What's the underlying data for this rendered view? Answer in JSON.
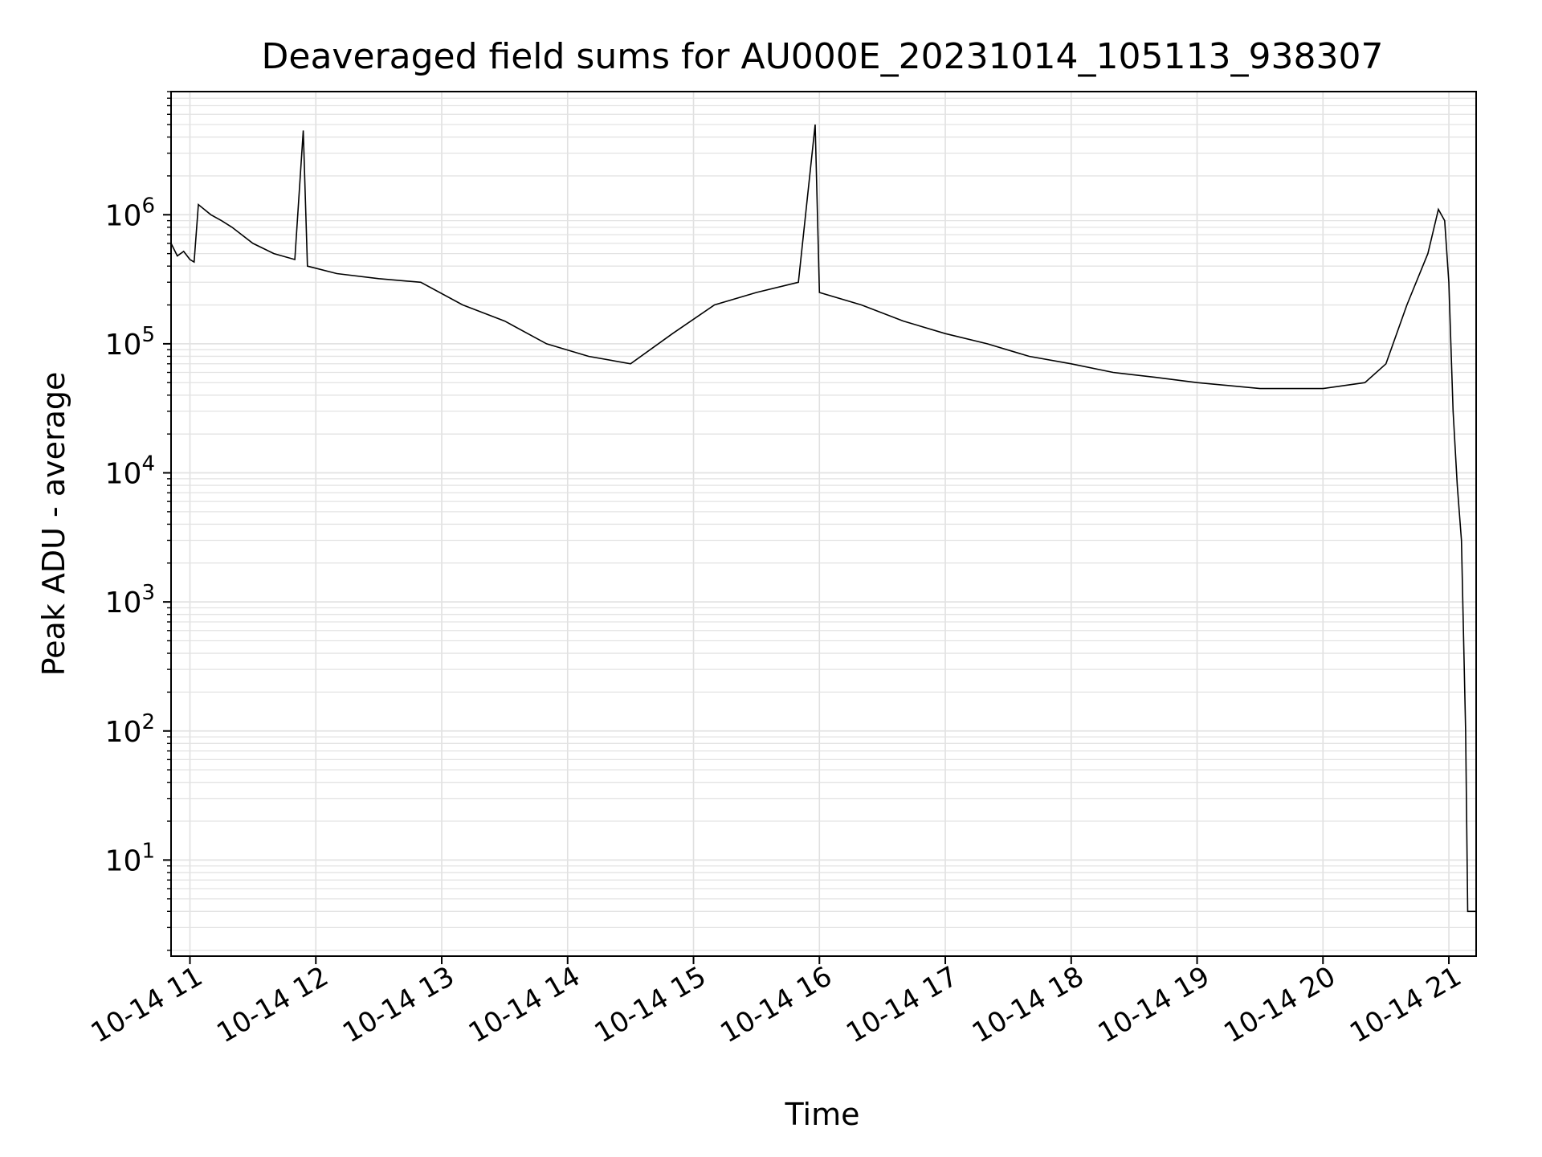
{
  "chart_data": {
    "type": "line",
    "title": "Deaveraged field sums for AU000E_20231014_105113_938307",
    "xlabel": "Time",
    "ylabel": "Peak ADU - average",
    "yscale": "log",
    "ylim": [
      1.8,
      9000000
    ],
    "xlim": [
      "2023-10-14T10:51:00",
      "2023-10-14T21:13:00"
    ],
    "grid": true,
    "x_tick_labels": [
      "10-14 11",
      "10-14 12",
      "10-14 13",
      "10-14 14",
      "10-14 15",
      "10-14 16",
      "10-14 17",
      "10-14 18",
      "10-14 19",
      "10-14 20",
      "10-14 21"
    ],
    "y_tick_exponents": [
      "1",
      "2",
      "3",
      "4",
      "5",
      "6"
    ],
    "y_tick_base": "10",
    "series": [
      {
        "color": "#000000",
        "points": [
          [
            "2023-10-14T10:51:00",
            600000
          ],
          [
            "2023-10-14T10:54:00",
            480000
          ],
          [
            "2023-10-14T10:57:00",
            520000
          ],
          [
            "2023-10-14T11:00:00",
            450000
          ],
          [
            "2023-10-14T11:02:00",
            430000
          ],
          [
            "2023-10-14T11:04:00",
            1200000
          ],
          [
            "2023-10-14T11:10:00",
            1000000
          ],
          [
            "2023-10-14T11:15:00",
            900000
          ],
          [
            "2023-10-14T11:20:00",
            800000
          ],
          [
            "2023-10-14T11:30:00",
            600000
          ],
          [
            "2023-10-14T11:40:00",
            500000
          ],
          [
            "2023-10-14T11:50:00",
            450000
          ],
          [
            "2023-10-14T11:54:00",
            4500000
          ],
          [
            "2023-10-14T11:56:00",
            400000
          ],
          [
            "2023-10-14T12:10:00",
            350000
          ],
          [
            "2023-10-14T12:30:00",
            320000
          ],
          [
            "2023-10-14T12:50:00",
            300000
          ],
          [
            "2023-10-14T13:10:00",
            200000
          ],
          [
            "2023-10-14T13:30:00",
            150000
          ],
          [
            "2023-10-14T13:50:00",
            100000
          ],
          [
            "2023-10-14T14:10:00",
            80000
          ],
          [
            "2023-10-14T14:30:00",
            70000
          ],
          [
            "2023-10-14T14:50:00",
            120000
          ],
          [
            "2023-10-14T15:10:00",
            200000
          ],
          [
            "2023-10-14T15:30:00",
            250000
          ],
          [
            "2023-10-14T15:50:00",
            300000
          ],
          [
            "2023-10-14T15:58:00",
            5000000
          ],
          [
            "2023-10-14T16:00:00",
            250000
          ],
          [
            "2023-10-14T16:20:00",
            200000
          ],
          [
            "2023-10-14T16:40:00",
            150000
          ],
          [
            "2023-10-14T17:00:00",
            120000
          ],
          [
            "2023-10-14T17:20:00",
            100000
          ],
          [
            "2023-10-14T17:40:00",
            80000
          ],
          [
            "2023-10-14T18:00:00",
            70000
          ],
          [
            "2023-10-14T18:20:00",
            60000
          ],
          [
            "2023-10-14T18:40:00",
            55000
          ],
          [
            "2023-10-14T19:00:00",
            50000
          ],
          [
            "2023-10-14T19:30:00",
            45000
          ],
          [
            "2023-10-14T20:00:00",
            45000
          ],
          [
            "2023-10-14T20:20:00",
            50000
          ],
          [
            "2023-10-14T20:30:00",
            70000
          ],
          [
            "2023-10-14T20:40:00",
            200000
          ],
          [
            "2023-10-14T20:50:00",
            500000
          ],
          [
            "2023-10-14T20:55:00",
            1100000
          ],
          [
            "2023-10-14T20:58:00",
            900000
          ],
          [
            "2023-10-14T21:00:00",
            300000
          ],
          [
            "2023-10-14T21:02:00",
            30000
          ],
          [
            "2023-10-14T21:04:00",
            8000
          ],
          [
            "2023-10-14T21:06:00",
            3000
          ],
          [
            "2023-10-14T21:08:00",
            100
          ],
          [
            "2023-10-14T21:09:00",
            4
          ],
          [
            "2023-10-14T21:13:00",
            4
          ]
        ]
      }
    ]
  }
}
